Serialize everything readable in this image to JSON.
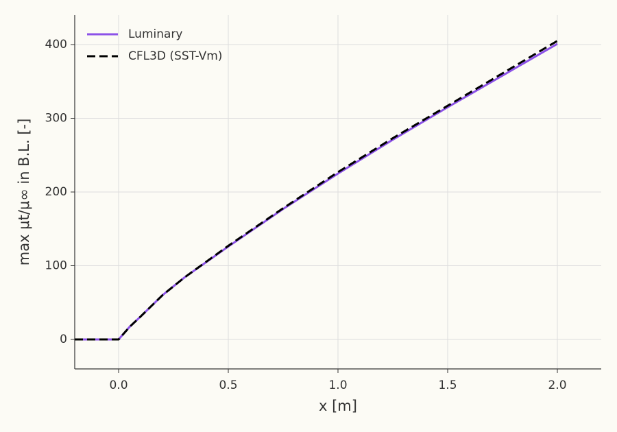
{
  "chart_data": {
    "type": "line",
    "xlabel": "x [m]",
    "ylabel": "max μt/μ∞ in B.L. [-]",
    "series": [
      {
        "name": "Luminary",
        "color": "#8c52e8",
        "linestyle": "solid",
        "x": [
          -0.2,
          0,
          0.05,
          0.1,
          0.2,
          0.3,
          0.5,
          0.75,
          1.0,
          1.25,
          1.5,
          1.75,
          2.0
        ],
        "values": [
          0,
          0,
          17,
          31,
          60,
          84,
          126,
          177,
          225,
          271,
          315,
          358,
          401
        ]
      },
      {
        "name": "CFL3D (SST-Vm)",
        "color": "#000000",
        "linestyle": "dashed",
        "x": [
          -0.2,
          0,
          0.05,
          0.1,
          0.2,
          0.3,
          0.5,
          0.75,
          1.0,
          1.25,
          1.5,
          1.75,
          2.0
        ],
        "values": [
          0,
          0,
          17,
          31,
          60,
          84,
          127,
          178,
          227,
          273,
          317,
          361,
          405
        ]
      }
    ],
    "xlim": [
      -0.2,
      2.2
    ],
    "ylim": [
      -40,
      440
    ],
    "xticks": [
      {
        "value": 0,
        "label": "0.0"
      },
      0.5,
      {
        "value": 1,
        "label": "1.0"
      },
      1.5,
      {
        "value": 2,
        "label": "2.0"
      }
    ],
    "yticks": [
      0,
      100,
      200,
      300,
      400
    ],
    "grid": true,
    "legend": "upper left"
  }
}
